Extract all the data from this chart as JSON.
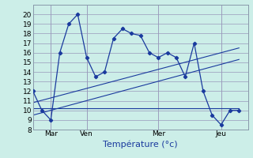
{
  "background_color": "#cceee8",
  "grid_color": "#9999bb",
  "line_color": "#1a3a9e",
  "xlabel": "Température (°c)",
  "xlabel_color": "#1a3a9e",
  "xlabel_fontsize": 8,
  "tick_fontsize": 6.5,
  "ylim_min": 8,
  "ylim_max": 21,
  "yticks": [
    8,
    9,
    10,
    11,
    12,
    13,
    14,
    15,
    16,
    17,
    18,
    19,
    20
  ],
  "xlim_min": 0,
  "xlim_max": 24,
  "xtick_positions": [
    2,
    6,
    14,
    21
  ],
  "xtick_labels": [
    "Mar",
    "Ven",
    "Mer",
    "Jeu"
  ],
  "main_x": [
    0,
    1,
    2,
    3,
    4,
    5,
    6,
    7,
    8,
    9,
    10,
    11,
    12,
    13,
    14,
    15,
    16,
    17,
    18,
    19,
    20,
    21,
    22,
    23
  ],
  "main_y": [
    12,
    10,
    9,
    16,
    19,
    20,
    15.5,
    13.5,
    14,
    17.5,
    18.5,
    18,
    17.8,
    16,
    15.5,
    16,
    15.5,
    13.5,
    17,
    12,
    9.5,
    8.5,
    10,
    10
  ],
  "flat_line_x": [
    0,
    23
  ],
  "flat_line_y": [
    10.2,
    10.2
  ],
  "trend1_x": [
    0,
    23
  ],
  "trend1_y": [
    9.5,
    15.3
  ],
  "trend2_x": [
    0,
    23
  ],
  "trend2_y": [
    10.8,
    16.5
  ]
}
